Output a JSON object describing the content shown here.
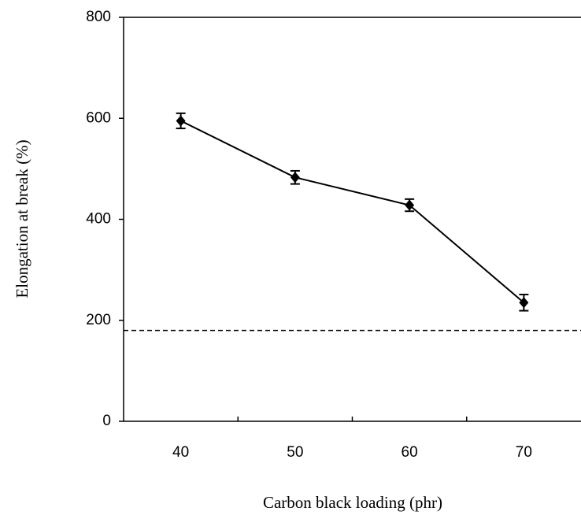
{
  "chart_data": {
    "type": "line",
    "x_label": "Carbon black loading (phr)",
    "y_label": "Elongation at break (%)",
    "categories": [
      "40",
      "50",
      "60",
      "70"
    ],
    "values": [
      595,
      483,
      428,
      235
    ],
    "errors": [
      15,
      13,
      12,
      16
    ],
    "color": "#000000",
    "hline": 180,
    "ylim": [
      0,
      800
    ],
    "yticks": [
      0,
      200,
      400,
      600,
      800
    ],
    "grid": false
  }
}
